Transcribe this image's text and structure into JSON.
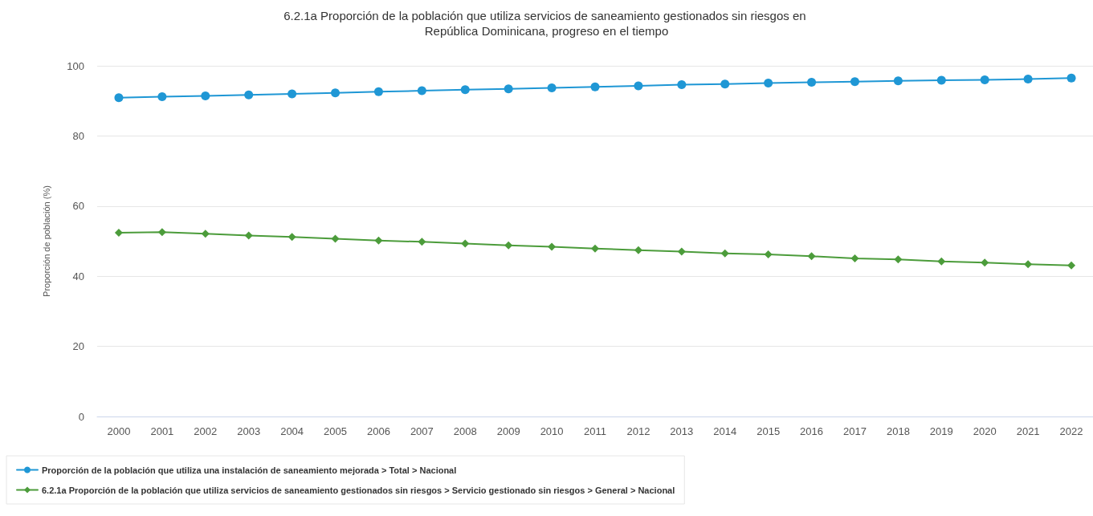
{
  "chart_data": {
    "type": "line",
    "title": "6.2.1a Proporción de la población que utiliza servicios de saneamiento gestionados sin riesgos en República Dominicana, progreso en el tiempo",
    "ylabel": "Proporción de población (%)",
    "categories": [
      "2000",
      "2001",
      "2002",
      "2003",
      "2004",
      "2005",
      "2006",
      "2007",
      "2008",
      "2009",
      "2010",
      "2011",
      "2012",
      "2013",
      "2014",
      "2015",
      "2016",
      "2017",
      "2018",
      "2019",
      "2020",
      "2021",
      "2022"
    ],
    "series": [
      {
        "name": "Proporción de la población que utiliza una instalación de saneamiento mejorada > Total > Nacional",
        "color": "#1f97d5",
        "marker": "circle",
        "values": [
          90.9,
          91.2,
          91.4,
          91.7,
          92.0,
          92.3,
          92.6,
          92.9,
          93.2,
          93.4,
          93.7,
          94.0,
          94.3,
          94.6,
          94.8,
          95.1,
          95.3,
          95.5,
          95.7,
          95.9,
          96.0,
          96.2,
          96.5
        ]
      },
      {
        "name": "6.2.1a Proporción de la población que utiliza servicios de saneamiento gestionados sin riesgos > Servicio gestionado sin riesgos > General > Nacional",
        "color": "#4c9c3b",
        "marker": "diamond",
        "values": [
          52.4,
          52.6,
          52.1,
          51.6,
          51.2,
          50.7,
          50.2,
          49.8,
          49.3,
          48.8,
          48.4,
          47.9,
          47.4,
          47.0,
          46.5,
          46.2,
          45.7,
          45.1,
          44.8,
          44.2,
          43.9,
          43.4,
          43.1
        ]
      }
    ],
    "ylim": [
      0,
      100
    ],
    "yticks": [
      0,
      20,
      40,
      60,
      80,
      100
    ],
    "grid": "y",
    "legend": "bottom",
    "line_style": "solid"
  }
}
